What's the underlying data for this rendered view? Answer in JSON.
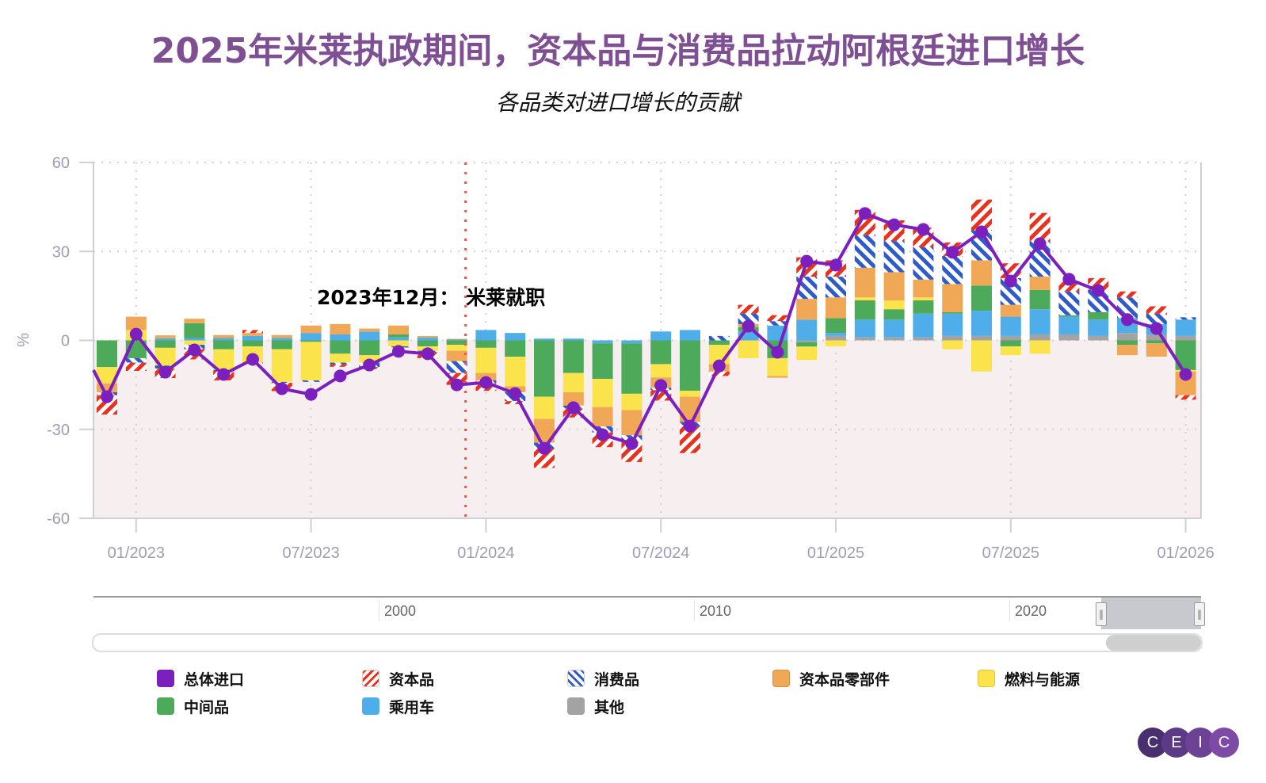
{
  "title": "2025年米莱执政期间，资本品与消费品拉动阿根廷进口增长",
  "subtitle": "各品类对进口增长的贡献",
  "colors": {
    "total": "#7b1fbf",
    "capital_goods": "#e8321e",
    "consumer_goods": "#2f5bc8",
    "capital_parts": "#f0a857",
    "fuel_energy": "#fbe44b",
    "intermediate": "#4caa5a",
    "passenger_cars": "#4fadea",
    "other": "#a3a3a3",
    "plot_negative_bg": "#f7efef",
    "annotation_line": "#e8564a",
    "title": "#7e4f92"
  },
  "chart_data": {
    "type": "bar",
    "stacked": true,
    "title": "2025年米莱执政期间，资本品与消费品拉动阿根廷进口增长",
    "subtitle": "各品类对进口增长的贡献",
    "ylabel": "%",
    "xlabel": "",
    "ylim": [
      -60,
      60
    ],
    "yticks": [
      "60",
      "30",
      "0",
      "-30",
      "-60"
    ],
    "ytick_values": [
      60,
      30,
      0,
      -30,
      -60
    ],
    "xticks": [
      "01/2023",
      "07/2023",
      "01/2024",
      "07/2024",
      "01/2025",
      "07/2025",
      "01/2026"
    ],
    "xtick_index": [
      1,
      7,
      13,
      19,
      25,
      31,
      37
    ],
    "grid": true,
    "legend_position": "bottom",
    "annotation": {
      "text": "2023年12月： 米莱就职",
      "x_index": 12.3
    },
    "categories": [
      "12/2022",
      "01/2023",
      "02/2023",
      "03/2023",
      "04/2023",
      "05/2023",
      "06/2023",
      "07/2023",
      "08/2023",
      "09/2023",
      "10/2023",
      "11/2023",
      "12/2023",
      "01/2024",
      "02/2024",
      "03/2024",
      "04/2024",
      "05/2024",
      "06/2024",
      "07/2024",
      "08/2024",
      "09/2024",
      "10/2024",
      "11/2024",
      "12/2024",
      "01/2025",
      "02/2025",
      "03/2025",
      "04/2025",
      "05/2025",
      "06/2025",
      "07/2025",
      "08/2025",
      "09/2025",
      "10/2025",
      "11/2025",
      "12/2025",
      "01/2026"
    ],
    "series": [
      {
        "name": "资本品",
        "key": "capital_goods",
        "values": [
          -6.5,
          -2.8,
          -3.2,
          -3.4,
          -3.2,
          1.0,
          -2.8,
          0,
          -0.8,
          -0.7,
          0,
          -2.0,
          -4.0,
          -2.5,
          -1.0,
          -6.5,
          -3.0,
          -5.0,
          -6.5,
          -3.5,
          -9.0,
          -1.5,
          3.0,
          2.0,
          6.5,
          5.5,
          8.5,
          7.0,
          6.5,
          4.5,
          10.5,
          5.0,
          9.5,
          3.5,
          4.0,
          2.0,
          2.5,
          -1.5
        ]
      },
      {
        "name": "消费品",
        "key": "consumer_goods",
        "values": [
          -1.0,
          -1.5,
          -1.0,
          -1.5,
          -0.3,
          -0.6,
          -0.3,
          -0.5,
          -0.6,
          -1.5,
          -0.4,
          -0.5,
          -4.0,
          -1.0,
          -3.0,
          -2.0,
          -1.0,
          -2.0,
          -2.5,
          -0.8,
          -1.5,
          1.5,
          3.5,
          1.5,
          7.5,
          7.0,
          11.0,
          10.5,
          11.0,
          9.5,
          10.0,
          9.0,
          12.0,
          8.0,
          7.5,
          7.0,
          3.5,
          0.8
        ]
      },
      {
        "name": "资本品零部件",
        "key": "capital_parts",
        "values": [
          -3.0,
          4.5,
          1.0,
          1.5,
          1.0,
          1.0,
          1.0,
          2.5,
          3.5,
          1.0,
          3.0,
          0.5,
          -3.5,
          -2.5,
          -2.0,
          -8.0,
          -4.5,
          -6.5,
          -8.5,
          -3.5,
          -8.5,
          -2.5,
          1.0,
          -0.6,
          7.0,
          7.0,
          10.0,
          9.5,
          6.0,
          9.5,
          8.5,
          4.0,
          4.5,
          0,
          0,
          -3.5,
          -4.5,
          -8.0
        ]
      },
      {
        "name": "燃料与能源",
        "key": "fuel_energy",
        "values": [
          -5.5,
          3.5,
          -6.0,
          -1.5,
          -7.0,
          -5.5,
          -11.0,
          -13.0,
          -3.0,
          -2.5,
          -2.0,
          -1.5,
          -2.0,
          -8.5,
          -10.0,
          -7.5,
          -6.5,
          -9.5,
          -5.5,
          -4.5,
          -2.0,
          -6.5,
          -6.0,
          -6.0,
          -4.5,
          -2.0,
          1.0,
          3.0,
          1.0,
          -3.0,
          -10.5,
          -3.0,
          -4.5,
          0,
          0,
          0,
          0,
          -0.5
        ]
      },
      {
        "name": "中间品",
        "key": "intermediate",
        "values": [
          -9.0,
          -6.0,
          -2.5,
          5.0,
          -3.0,
          -2.0,
          -3.0,
          -0.5,
          -4.5,
          -5.0,
          1.0,
          -2.0,
          -1.5,
          -2.5,
          -5.5,
          -19.0,
          -11.0,
          -12.0,
          -17.0,
          -8.0,
          -17.0,
          -1.5,
          1.5,
          -6.0,
          -1.5,
          5.0,
          6.5,
          3.5,
          4.5,
          0.5,
          8.5,
          -2.0,
          6.5,
          0.5,
          2.5,
          -1.5,
          -1.0,
          -10.0
        ]
      },
      {
        "name": "乘用车",
        "key": "passenger_cars",
        "values": [
          0,
          0,
          0.7,
          0.8,
          0.8,
          1.5,
          0.8,
          2.5,
          2.0,
          3.0,
          1.0,
          1.0,
          0,
          3.5,
          2.5,
          0.6,
          0.6,
          -1.0,
          -1.0,
          3.0,
          3.5,
          0,
          3.0,
          5.0,
          7.0,
          1.0,
          6.0,
          6.0,
          8.0,
          7.5,
          8.5,
          6.5,
          8.5,
          6.0,
          5.5,
          5.0,
          3.5,
          5.5
        ]
      },
      {
        "name": "其他",
        "key": "other",
        "values": [
          0,
          0,
          0,
          0,
          0,
          0,
          0,
          0,
          0,
          0,
          0,
          0,
          0.5,
          0,
          0,
          0,
          0,
          0,
          0,
          0,
          0,
          0,
          0,
          0,
          -0.6,
          1.5,
          1.0,
          1.0,
          1.0,
          1.5,
          1.5,
          1.5,
          2.0,
          2.0,
          1.5,
          2.5,
          2.0,
          1.5
        ]
      }
    ],
    "line": {
      "name": "总体进口",
      "key": "total",
      "values": [
        -19.0,
        2.1,
        -10.7,
        -3.2,
        -11.5,
        -6.4,
        -16.3,
        -18.2,
        -12.0,
        -8.3,
        -3.7,
        -4.5,
        -15.0,
        -14.2,
        -17.9,
        -36.4,
        -22.7,
        -31.8,
        -34.8,
        -15.2,
        -28.9,
        -8.6,
        4.8,
        -4.0,
        26.7,
        25.4,
        42.8,
        39.0,
        37.4,
        29.7,
        36.6,
        20.0,
        32.6,
        20.6,
        16.8,
        7.0,
        4.0,
        -11.5
      ]
    }
  },
  "navigator": {
    "labels": [
      "2000",
      "2010",
      "2020"
    ]
  },
  "legend": [
    {
      "label": "总体进口",
      "key": "total",
      "pattern": "solid"
    },
    {
      "label": "资本品",
      "key": "capital_goods",
      "pattern": "hatch-forward"
    },
    {
      "label": "消费品",
      "key": "consumer_goods",
      "pattern": "hatch-back"
    },
    {
      "label": "资本品零部件",
      "key": "capital_parts",
      "pattern": "solid"
    },
    {
      "label": "燃料与能源",
      "key": "fuel_energy",
      "pattern": "solid"
    },
    {
      "label": "中间品",
      "key": "intermediate",
      "pattern": "solid"
    },
    {
      "label": "乘用车",
      "key": "passenger_cars",
      "pattern": "solid"
    },
    {
      "label": "其他",
      "key": "other",
      "pattern": "solid"
    }
  ],
  "logo": {
    "letters": [
      "C",
      "E",
      "I",
      "C"
    ]
  }
}
